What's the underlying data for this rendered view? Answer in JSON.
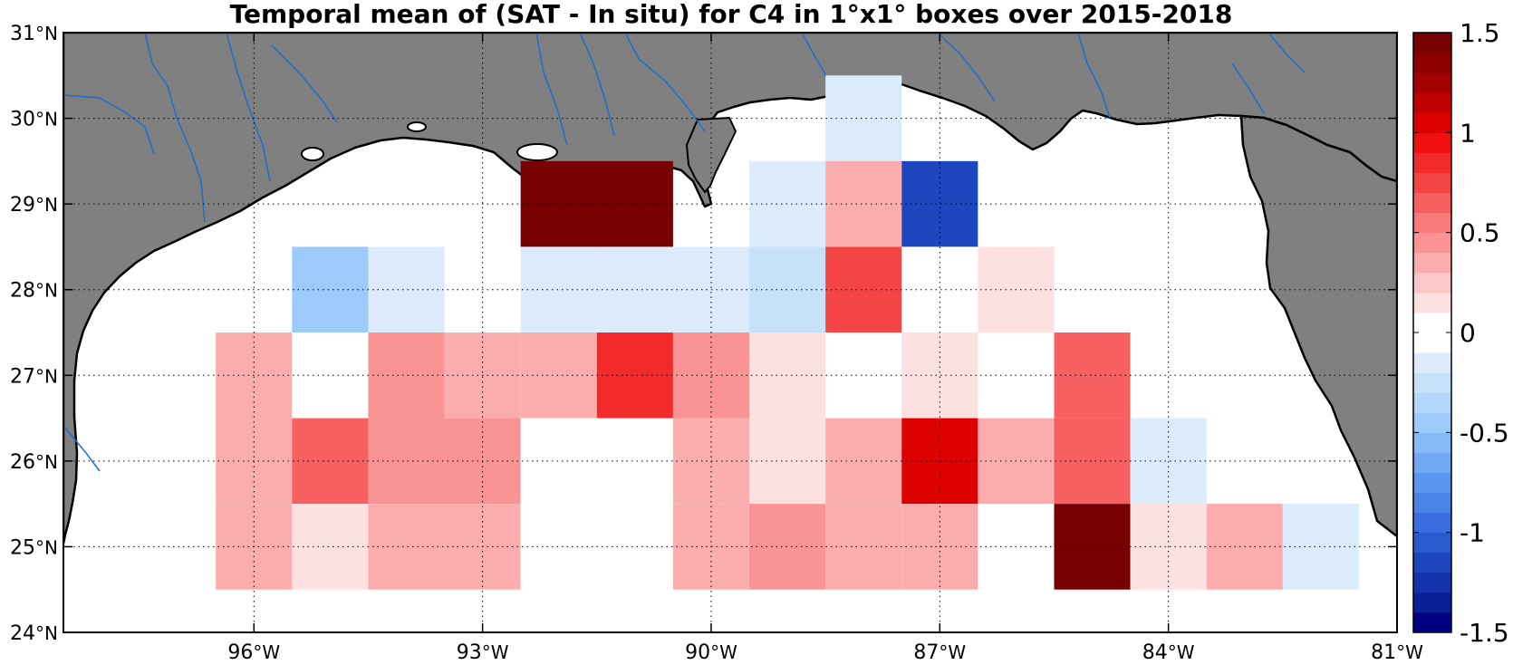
{
  "title": "Temporal mean of (SAT - In situ) for C4 in 1°x1° boxes over 2015-2018",
  "map": {
    "lon_range": [
      -98.5,
      -81.0
    ],
    "lat_range": [
      24.0,
      31.0
    ],
    "x_ticks": [
      {
        "value": -96,
        "label": "96",
        "unit": "°W"
      },
      {
        "value": -93,
        "label": "93",
        "unit": "°W"
      },
      {
        "value": -90,
        "label": "90",
        "unit": "°W"
      },
      {
        "value": -87,
        "label": "87",
        "unit": "°W"
      },
      {
        "value": -84,
        "label": "84",
        "unit": "°W"
      },
      {
        "value": -81,
        "label": "81",
        "unit": "°W"
      }
    ],
    "y_ticks": [
      {
        "value": 24,
        "label": "24",
        "unit": "°N"
      },
      {
        "value": 25,
        "label": "25",
        "unit": "°N"
      },
      {
        "value": 26,
        "label": "26",
        "unit": "°N"
      },
      {
        "value": 27,
        "label": "27",
        "unit": "°N"
      },
      {
        "value": 28,
        "label": "28",
        "unit": "°N"
      },
      {
        "value": 29,
        "label": "29",
        "unit": "°N"
      },
      {
        "value": 30,
        "label": "30",
        "unit": "°N"
      },
      {
        "value": 31,
        "label": "31",
        "unit": "°N"
      }
    ],
    "grid": "dotted",
    "land_color": "#808080",
    "ocean_color": "#ffffff",
    "river_color": "#1a6fd1",
    "coastline_color": "#000000"
  },
  "colorbar": {
    "range": [
      -1.5,
      1.5
    ],
    "levels": 30,
    "ticks": [
      {
        "value": 1.5,
        "label": "1.5"
      },
      {
        "value": 1.0,
        "label": "1"
      },
      {
        "value": 0.5,
        "label": "0.5"
      },
      {
        "value": 0.0,
        "label": "0"
      },
      {
        "value": -0.5,
        "label": "-0.5"
      },
      {
        "value": -1.0,
        "label": "-1"
      },
      {
        "value": -1.5,
        "label": "-1.5"
      }
    ],
    "colors": [
      "#000080",
      "#0a1e96",
      "#1432aa",
      "#1e46be",
      "#2a5ace",
      "#3a6ede",
      "#4a82e8",
      "#5c95ef",
      "#70a8f5",
      "#86baf8",
      "#9ccaf9",
      "#b3d6fa",
      "#c8e1fb",
      "#dcebfc",
      "#ffffff",
      "#ffffff",
      "#fde0e0",
      "#fcc7c7",
      "#fbadad",
      "#fa9494",
      "#f87a7a",
      "#f66060",
      "#f44545",
      "#f22a2a",
      "#f01010",
      "#dc0000",
      "#c00000",
      "#a40000",
      "#8c0000",
      "#780000"
    ]
  },
  "chart_data": {
    "type": "heatmap",
    "title": "Temporal mean of (SAT - In situ) for C4 in 1°x1° boxes over 2015-2018",
    "xlabel": "",
    "ylabel": "",
    "xlim": [
      -98.5,
      -81.0
    ],
    "ylim": [
      24.0,
      31.0
    ],
    "colorbar_range": [
      -1.5,
      1.5
    ],
    "cell_size_deg": 1,
    "cells": [
      {
        "lon": -92.0,
        "lat": 29.0,
        "width": 2,
        "value": 1.5
      },
      {
        "lon": -88.0,
        "lat": 30.0,
        "value": -0.1
      },
      {
        "lon": -88.0,
        "lat": 29.0,
        "value": 0.3
      },
      {
        "lon": -87.0,
        "lat": 29.0,
        "value": -1.15
      },
      {
        "lon": -89.0,
        "lat": 29.0,
        "value": -0.1
      },
      {
        "lon": -95.0,
        "lat": 28.0,
        "value": -0.5
      },
      {
        "lon": -94.0,
        "lat": 28.0,
        "value": -0.1
      },
      {
        "lon": -93.0,
        "lat": 28.0,
        "value": 0.0
      },
      {
        "lon": -92.0,
        "lat": 28.0,
        "value": -0.1
      },
      {
        "lon": -91.0,
        "lat": 28.0,
        "value": -0.1
      },
      {
        "lon": -90.0,
        "lat": 28.0,
        "value": -0.1
      },
      {
        "lon": -89.0,
        "lat": 28.0,
        "value": -0.25
      },
      {
        "lon": -88.0,
        "lat": 28.0,
        "value": 0.7
      },
      {
        "lon": -87.0,
        "lat": 28.0,
        "value": 0.0
      },
      {
        "lon": -86.0,
        "lat": 28.0,
        "value": 0.15
      },
      {
        "lon": -96.0,
        "lat": 27.0,
        "value": 0.3
      },
      {
        "lon": -95.0,
        "lat": 27.0,
        "value": 0.0
      },
      {
        "lon": -94.0,
        "lat": 27.0,
        "value": 0.4
      },
      {
        "lon": -93.0,
        "lat": 27.0,
        "value": 0.3
      },
      {
        "lon": -92.0,
        "lat": 27.0,
        "value": 0.3
      },
      {
        "lon": -91.0,
        "lat": 27.0,
        "value": 0.9
      },
      {
        "lon": -90.0,
        "lat": 27.0,
        "value": 0.4
      },
      {
        "lon": -89.0,
        "lat": 27.0,
        "value": 0.15
      },
      {
        "lon": -88.0,
        "lat": 27.0,
        "value": 0.0
      },
      {
        "lon": -87.0,
        "lat": 27.0,
        "value": 0.15
      },
      {
        "lon": -85.0,
        "lat": 27.0,
        "value": 0.6
      },
      {
        "lon": -96.0,
        "lat": 26.0,
        "value": 0.3
      },
      {
        "lon": -95.0,
        "lat": 26.0,
        "value": 0.6
      },
      {
        "lon": -94.0,
        "lat": 26.0,
        "value": 0.4
      },
      {
        "lon": -93.0,
        "lat": 26.0,
        "value": 0.4
      },
      {
        "lon": -92.0,
        "lat": 26.0,
        "value": 0.0
      },
      {
        "lon": -90.0,
        "lat": 26.0,
        "value": 0.3
      },
      {
        "lon": -89.0,
        "lat": 26.0,
        "value": 0.15
      },
      {
        "lon": -88.0,
        "lat": 26.0,
        "value": 0.3
      },
      {
        "lon": -87.0,
        "lat": 26.0,
        "value": 1.0
      },
      {
        "lon": -86.0,
        "lat": 26.0,
        "value": 0.3
      },
      {
        "lon": -85.0,
        "lat": 26.0,
        "value": 0.6
      },
      {
        "lon": -84.0,
        "lat": 26.0,
        "value": -0.2
      },
      {
        "lon": -96.0,
        "lat": 25.0,
        "value": 0.3
      },
      {
        "lon": -95.0,
        "lat": 25.0,
        "value": 0.15
      },
      {
        "lon": -94.0,
        "lat": 25.0,
        "value": 0.3
      },
      {
        "lon": -93.0,
        "lat": 25.0,
        "value": 0.3
      },
      {
        "lon": -92.0,
        "lat": 25.0,
        "value": 0.0
      },
      {
        "lon": -90.0,
        "lat": 25.0,
        "value": 0.3
      },
      {
        "lon": -89.0,
        "lat": 25.0,
        "value": 0.4
      },
      {
        "lon": -88.0,
        "lat": 25.0,
        "value": 0.3
      },
      {
        "lon": -87.0,
        "lat": 25.0,
        "value": 0.3
      },
      {
        "lon": -85.0,
        "lat": 25.0,
        "value": 1.5
      },
      {
        "lon": -84.0,
        "lat": 25.0,
        "value": 0.15
      },
      {
        "lon": -83.0,
        "lat": 25.0,
        "value": 0.3
      },
      {
        "lon": -82.0,
        "lat": 25.0,
        "value": -0.2
      }
    ]
  }
}
